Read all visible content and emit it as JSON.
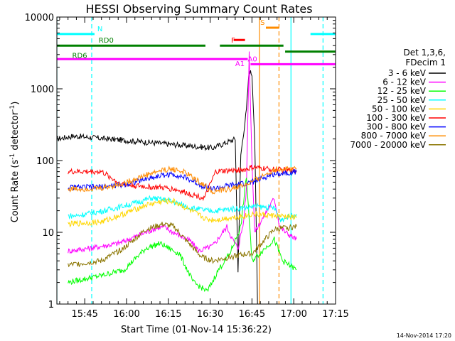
{
  "chart_data": {
    "type": "line",
    "title": "HESSI Observing Summary Count Rates",
    "xlabel": "Start Time (01-Nov-14 15:36:22)",
    "ylabel_main": "Count Rate (s",
    "ylabel_sup1": "-1",
    "ylabel_mid": " detector",
    "ylabel_sup2": "-1",
    "ylabel_end": ")",
    "y_scale": "log",
    "xlim_minutes": [
      -2,
      98
    ],
    "ylim": [
      1,
      10000
    ],
    "x_ticks": [
      {
        "label": "15:45",
        "t": 8
      },
      {
        "label": "16:00",
        "t": 23
      },
      {
        "label": "16:15",
        "t": 38
      },
      {
        "label": "16:30",
        "t": 53
      },
      {
        "label": "16:45",
        "t": 68
      },
      {
        "label": "17:00",
        "t": 83
      },
      {
        "label": "17:15",
        "t": 98
      }
    ],
    "y_ticks": [
      {
        "label": "1",
        "v": 1
      },
      {
        "label": "10",
        "v": 10
      },
      {
        "label": "100",
        "v": 100
      },
      {
        "label": "1000",
        "v": 1000
      },
      {
        "label": "10000",
        "v": 10000
      }
    ],
    "legend": {
      "header": [
        "Det 1,3,6,",
        "FDecim 1"
      ],
      "position": "right"
    },
    "series": [
      {
        "name": "3 - 6 keV",
        "color": "#000000",
        "points": [
          [
            -2,
            200
          ],
          [
            4,
            220
          ],
          [
            54,
            150
          ],
          [
            62,
            200
          ],
          [
            63,
            3
          ],
          [
            64,
            120
          ],
          [
            66,
            500
          ],
          [
            67,
            1800
          ],
          [
            68,
            1600
          ],
          [
            69,
            200
          ],
          [
            70,
            1
          ]
        ]
      },
      {
        "name": "6 - 12 keV",
        "color": "#ff00ff",
        "points": [
          [
            2,
            5.5
          ],
          [
            10,
            6
          ],
          [
            20,
            7
          ],
          [
            34,
            11.5
          ],
          [
            36,
            12
          ],
          [
            46,
            7.5
          ],
          [
            49,
            5.5
          ],
          [
            54,
            6.5
          ],
          [
            59,
            12
          ],
          [
            61,
            8
          ],
          [
            63,
            6
          ],
          [
            65,
            14
          ],
          [
            66,
            40
          ],
          [
            67,
            3200
          ],
          [
            68,
            100
          ],
          [
            69,
            10
          ],
          [
            76,
            30
          ],
          [
            78,
            12
          ],
          [
            80,
            10
          ],
          [
            84,
            8
          ]
        ]
      },
      {
        "name": "12 - 25 keV",
        "color": "#00ff00",
        "points": [
          [
            2,
            2
          ],
          [
            14,
            2.5
          ],
          [
            22,
            3
          ],
          [
            30,
            6
          ],
          [
            35,
            7
          ],
          [
            42,
            5
          ],
          [
            47,
            2
          ],
          [
            52,
            1.5
          ],
          [
            56,
            3
          ],
          [
            60,
            5
          ],
          [
            64,
            12
          ],
          [
            66,
            60
          ],
          [
            68,
            4
          ],
          [
            76,
            8
          ],
          [
            79,
            4
          ],
          [
            84,
            3
          ]
        ]
      },
      {
        "name": "25 - 50 keV",
        "color": "#00ffff",
        "points": [
          [
            2,
            17
          ],
          [
            5,
            17
          ],
          [
            15,
            20
          ],
          [
            25,
            25
          ],
          [
            32,
            30
          ],
          [
            38,
            28
          ],
          [
            46,
            22
          ],
          [
            52,
            20
          ],
          [
            55,
            20
          ],
          [
            60,
            21
          ],
          [
            66,
            22
          ],
          [
            68,
            23
          ],
          [
            76,
            22
          ],
          [
            78,
            15
          ],
          [
            84,
            18
          ]
        ]
      },
      {
        "name": "50 - 100 keV",
        "color": "#ffd700",
        "points": [
          [
            2,
            13
          ],
          [
            14,
            14
          ],
          [
            22,
            18
          ],
          [
            30,
            24
          ],
          [
            36,
            27
          ],
          [
            40,
            27
          ],
          [
            46,
            20
          ],
          [
            52,
            15
          ],
          [
            56,
            15
          ],
          [
            60,
            16
          ],
          [
            66,
            17
          ],
          [
            68,
            18
          ],
          [
            76,
            17
          ],
          [
            84,
            16
          ]
        ]
      },
      {
        "name": "100 - 300 keV",
        "color": "#ff0000",
        "points": [
          [
            2,
            70
          ],
          [
            14,
            70
          ],
          [
            21,
            47
          ],
          [
            30,
            43
          ],
          [
            35,
            42
          ],
          [
            40,
            40
          ],
          [
            45,
            35
          ],
          [
            51,
            30
          ],
          [
            55,
            70
          ],
          [
            60,
            72
          ],
          [
            66,
            75
          ],
          [
            68,
            80
          ],
          [
            76,
            75
          ],
          [
            84,
            72
          ]
        ]
      },
      {
        "name": "300 - 800 keV",
        "color": "#0000ff",
        "points": [
          [
            2,
            42
          ],
          [
            14,
            43
          ],
          [
            22,
            46
          ],
          [
            30,
            55
          ],
          [
            36,
            63
          ],
          [
            40,
            64
          ],
          [
            44,
            58
          ],
          [
            50,
            45
          ],
          [
            54,
            40
          ],
          [
            60,
            45
          ],
          [
            66,
            48
          ],
          [
            68,
            50
          ],
          [
            76,
            65
          ],
          [
            84,
            70
          ]
        ]
      },
      {
        "name": "800 - 7000 keV",
        "color": "#ff8c00",
        "points": [
          [
            2,
            40
          ],
          [
            14,
            41
          ],
          [
            22,
            48
          ],
          [
            30,
            63
          ],
          [
            36,
            74
          ],
          [
            40,
            76
          ],
          [
            44,
            68
          ],
          [
            50,
            48
          ],
          [
            54,
            37
          ],
          [
            60,
            40
          ],
          [
            66,
            46
          ],
          [
            68,
            50
          ],
          [
            76,
            75
          ],
          [
            84,
            78
          ]
        ]
      },
      {
        "name": "7000 - 20000 keV",
        "color": "#8b7500",
        "points": [
          [
            2,
            3.5
          ],
          [
            14,
            4
          ],
          [
            22,
            6
          ],
          [
            30,
            11
          ],
          [
            36,
            13
          ],
          [
            40,
            12
          ],
          [
            44,
            8
          ],
          [
            50,
            4.5
          ],
          [
            54,
            4
          ],
          [
            60,
            4.5
          ],
          [
            66,
            5
          ],
          [
            68,
            5
          ],
          [
            76,
            11
          ],
          [
            84,
            12
          ]
        ]
      }
    ],
    "attenuator_bars": [
      {
        "label": "N",
        "color": "#00ffff",
        "level": 5800,
        "segments": [
          [
            -2,
            11.5
          ],
          [
            89,
            98
          ]
        ]
      },
      {
        "label": "RD0",
        "color": "#008000",
        "level": 4000,
        "segments": [
          [
            -2,
            51.3
          ],
          [
            56.5,
            79.3
          ]
        ]
      },
      {
        "label": "RD6",
        "color": "#008000",
        "level": 3300,
        "segments": [
          [
            79.9,
            98
          ]
        ]
      },
      {
        "label": "F",
        "color": "#ff0000",
        "level": 4800,
        "segments": [
          [
            61.5,
            65.5
          ]
        ]
      },
      {
        "label": "S",
        "color": "#ff8c00",
        "level": 7100,
        "segments": [
          [
            73,
            77.7
          ]
        ]
      },
      {
        "label": "A0",
        "color": "#ff00ff",
        "level": 2200,
        "segments": [
          [
            67.5,
            98
          ]
        ]
      },
      {
        "label": "A1",
        "color": "#ff00ff",
        "level": 2600,
        "segments": [
          [
            -2,
            66.5
          ]
        ]
      }
    ],
    "event_lines": [
      {
        "t": 10.5,
        "color": "#00ffff",
        "style": "dashed"
      },
      {
        "t": 70.7,
        "color": "#ff8c00",
        "style": "solid"
      },
      {
        "t": 77.7,
        "color": "#ff8c00",
        "style": "dashed"
      },
      {
        "t": 82,
        "color": "#00ffff",
        "style": "solid"
      },
      {
        "t": 93.5,
        "color": "#00ffff",
        "style": "dashed"
      },
      {
        "t": -2,
        "color": "#00ffff",
        "style": "solid"
      }
    ],
    "footer_date": "14-Nov-2014 17:20"
  }
}
